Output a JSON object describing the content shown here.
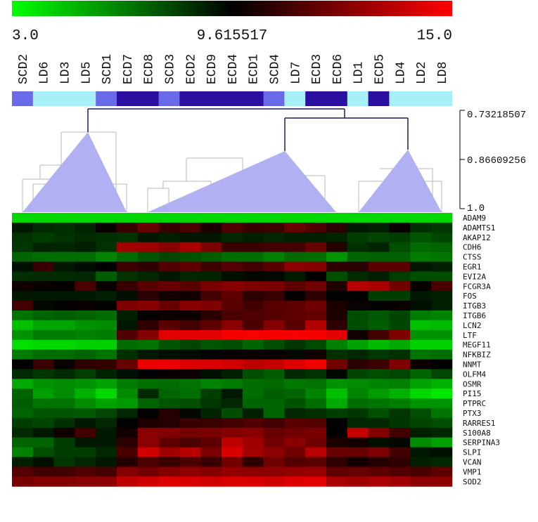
{
  "chart_data": {
    "type": "heatmap",
    "color_scale": {
      "min": 3.0,
      "mid": 9.615517,
      "max": 15.0,
      "min_label": "3.0",
      "mid_label": "9.615517",
      "max_label": "15.0",
      "colors": [
        "#00ff00",
        "#000000",
        "#ff0000"
      ]
    },
    "samples": [
      "SCD2",
      "LD6",
      "LD3",
      "LD5",
      "SCD1",
      "ECD7",
      "ECD8",
      "SCD3",
      "ECD2",
      "ECD9",
      "ECD4",
      "ECD1",
      "SCD4",
      "LD7",
      "ECD3",
      "ECD6",
      "LD1",
      "ECD5",
      "LD4",
      "LD2",
      "LD8"
    ],
    "sample_groups": [
      "SCD",
      "LD",
      "LD",
      "LD",
      "SCD",
      "ECD",
      "ECD",
      "SCD",
      "ECD",
      "ECD",
      "ECD",
      "ECD",
      "SCD",
      "LD",
      "ECD",
      "ECD",
      "LD",
      "ECD",
      "LD",
      "LD",
      "LD"
    ],
    "group_colors": {
      "SCD": "#6a6ae8",
      "LD": "#a8f0f8",
      "ECD": "#2a0fa0"
    },
    "genes": [
      "ADAM9",
      "ADAMTS1",
      "AKAP12",
      "CDH6",
      "CTSS",
      "EGR1",
      "EVI2A",
      "FCGR3A",
      "FOS",
      "ITGB3",
      "ITGB6",
      "LCN2",
      "LTF",
      "MEGF11",
      "NFKBIZ",
      "NNMT",
      "OLFM4",
      "OSMR",
      "PI15",
      "PTPRC",
      "PTX3",
      "RARRES1",
      "S100A8",
      "SERPINA3",
      "SLPI",
      "VCAN",
      "VMP1",
      "SOD2"
    ],
    "values": [
      [
        4.0,
        4.0,
        4.0,
        4.0,
        4.0,
        4.0,
        4.0,
        4.0,
        4.0,
        4.0,
        4.0,
        4.0,
        4.0,
        4.0,
        4.0,
        4.0,
        4.0,
        4.0,
        4.0,
        4.0,
        4.0
      ],
      [
        9.0,
        8.5,
        8.4,
        8.7,
        9.8,
        10.8,
        11.8,
        10.8,
        11.2,
        10.2,
        11.3,
        10.8,
        10.9,
        11.8,
        11.3,
        10.5,
        9.0,
        8.8,
        9.8,
        8.4,
        8.1
      ],
      [
        8.3,
        8.0,
        8.3,
        8.5,
        8.4,
        8.3,
        9.0,
        8.8,
        9.0,
        9.0,
        8.6,
        8.8,
        8.6,
        8.8,
        8.8,
        8.7,
        8.0,
        7.8,
        8.0,
        7.4,
        7.8
      ],
      [
        8.2,
        8.7,
        8.6,
        8.8,
        8.3,
        13.0,
        13.0,
        12.5,
        13.2,
        12.2,
        10.8,
        10.8,
        11.0,
        11.0,
        11.8,
        10.4,
        8.4,
        8.7,
        7.6,
        6.9,
        7.0
      ],
      [
        7.0,
        6.8,
        6.8,
        6.8,
        6.2,
        6.8,
        7.4,
        7.8,
        7.5,
        7.2,
        6.8,
        6.8,
        6.3,
        6.9,
        6.8,
        5.8,
        7.0,
        7.1,
        7.1,
        6.4,
        6.6
      ],
      [
        9.2,
        10.8,
        9.0,
        9.3,
        9.6,
        10.9,
        10.6,
        11.3,
        11.6,
        10.9,
        11.4,
        11.0,
        11.5,
        12.6,
        12.4,
        10.6,
        10.5,
        11.5,
        11.5,
        9.0,
        8.8
      ],
      [
        8.4,
        8.5,
        8.5,
        8.6,
        7.2,
        8.3,
        8.6,
        9.0,
        8.6,
        8.7,
        9.2,
        9.4,
        9.4,
        8.9,
        9.6,
        7.6,
        8.5,
        8.8,
        8.0,
        7.6,
        7.6
      ],
      [
        10.0,
        9.8,
        9.7,
        11.2,
        9.8,
        10.8,
        11.5,
        11.8,
        11.5,
        12.2,
        12.5,
        12.3,
        12.2,
        11.6,
        12.0,
        10.3,
        13.5,
        13.2,
        12.0,
        9.8,
        11.2
      ],
      [
        9.0,
        9.0,
        9.0,
        9.0,
        8.8,
        9.2,
        10.5,
        10.0,
        10.0,
        11.0,
        11.6,
        10.5,
        10.8,
        9.7,
        10.6,
        9.5,
        9.5,
        8.0,
        8.0,
        9.0,
        8.8
      ],
      [
        11.0,
        9.4,
        9.6,
        9.8,
        9.6,
        12.3,
        12.5,
        11.8,
        12.5,
        12.3,
        11.5,
        11.0,
        11.5,
        11.6,
        12.0,
        10.2,
        9.8,
        9.6,
        9.8,
        9.2,
        8.8
      ],
      [
        6.6,
        7.0,
        7.2,
        7.0,
        6.8,
        8.8,
        9.7,
        9.8,
        9.9,
        10.5,
        11.2,
        11.3,
        11.4,
        11.6,
        11.7,
        10.2,
        7.6,
        7.3,
        7.8,
        6.4,
        6.2
      ],
      [
        4.6,
        5.3,
        5.3,
        5.8,
        6.0,
        9.0,
        10.6,
        11.5,
        11.0,
        11.6,
        12.5,
        11.2,
        12.4,
        11.5,
        13.4,
        10.6,
        7.6,
        7.2,
        7.8,
        4.6,
        4.8
      ],
      [
        5.8,
        6.4,
        6.4,
        6.2,
        6.4,
        11.3,
        12.4,
        14.4,
        14.4,
        14.4,
        14.8,
        14.8,
        14.8,
        14.8,
        14.8,
        14.4,
        10.0,
        11.0,
        12.3,
        5.8,
        5.8
      ],
      [
        3.8,
        4.0,
        4.0,
        4.2,
        4.2,
        6.8,
        6.6,
        7.4,
        7.8,
        7.4,
        7.6,
        7.0,
        7.6,
        8.2,
        7.7,
        6.3,
        5.4,
        4.8,
        5.2,
        4.2,
        4.2
      ],
      [
        6.4,
        6.8,
        6.8,
        7.0,
        6.6,
        8.4,
        9.0,
        9.2,
        9.3,
        9.6,
        9.8,
        9.8,
        9.8,
        9.4,
        10.0,
        8.4,
        8.6,
        8.2,
        8.4,
        6.6,
        6.8
      ],
      [
        9.6,
        10.8,
        9.8,
        10.6,
        10.7,
        11.8,
        14.6,
        14.6,
        14.3,
        14.2,
        14.0,
        13.6,
        13.8,
        14.3,
        14.7,
        12.0,
        10.5,
        10.9,
        12.3,
        9.9,
        9.6
      ],
      [
        8.5,
        8.2,
        8.5,
        8.0,
        8.7,
        9.2,
        9.6,
        9.8,
        9.9,
        9.2,
        8.8,
        7.6,
        7.2,
        8.6,
        8.3,
        9.4,
        7.8,
        7.6,
        7.8,
        7.0,
        7.8
      ],
      [
        5.2,
        5.8,
        6.0,
        5.8,
        5.4,
        6.4,
        6.7,
        6.8,
        6.6,
        6.2,
        6.4,
        6.8,
        6.9,
        6.5,
        6.6,
        5.8,
        6.0,
        6.2,
        6.3,
        5.4,
        5.0
      ],
      [
        7.0,
        5.5,
        6.0,
        5.0,
        4.0,
        6.0,
        8.5,
        7.0,
        6.8,
        8.0,
        9.0,
        6.8,
        7.2,
        7.0,
        6.2,
        4.6,
        6.2,
        5.6,
        5.0,
        4.0,
        3.6
      ],
      [
        7.2,
        6.6,
        6.6,
        6.0,
        5.4,
        5.6,
        7.0,
        7.4,
        7.6,
        8.2,
        8.6,
        7.0,
        7.0,
        7.5,
        6.8,
        5.2,
        6.8,
        6.6,
        6.4,
        5.8,
        5.8
      ],
      [
        7.0,
        7.4,
        7.4,
        7.3,
        7.8,
        8.6,
        9.6,
        10.4,
        9.4,
        8.7,
        7.6,
        8.8,
        7.0,
        8.6,
        8.4,
        8.0,
        8.2,
        7.6,
        8.2,
        7.6,
        6.6
      ],
      [
        8.0,
        7.8,
        8.4,
        9.0,
        8.6,
        9.6,
        10.2,
        10.4,
        10.8,
        10.8,
        11.0,
        11.3,
        11.0,
        11.5,
        11.4,
        9.6,
        8.6,
        8.6,
        8.2,
        7.8,
        7.6
      ],
      [
        8.5,
        9.0,
        10.0,
        11.0,
        9.0,
        10.0,
        12.5,
        12.4,
        12.1,
        12.2,
        12.4,
        12.5,
        11.8,
        12.0,
        12.2,
        9.6,
        13.8,
        12.4,
        11.0,
        8.8,
        8.6
      ],
      [
        7.0,
        7.0,
        8.0,
        9.0,
        9.0,
        10.5,
        12.6,
        11.6,
        11.2,
        11.6,
        13.6,
        13.0,
        12.0,
        12.5,
        12.0,
        10.2,
        10.0,
        9.2,
        9.4,
        6.0,
        5.4
      ],
      [
        6.2,
        7.6,
        8.0,
        8.0,
        8.6,
        11.2,
        14.0,
        13.0,
        13.5,
        12.2,
        14.2,
        13.0,
        12.6,
        12.0,
        13.5,
        11.8,
        11.8,
        12.3,
        11.0,
        9.0,
        9.2
      ],
      [
        8.8,
        9.2,
        8.2,
        8.6,
        9.0,
        10.4,
        11.2,
        10.8,
        11.2,
        10.8,
        12.0,
        10.6,
        12.0,
        11.4,
        11.5,
        10.6,
        10.0,
        10.4,
        10.6,
        8.8,
        8.6
      ],
      [
        11.4,
        11.0,
        11.0,
        11.3,
        11.0,
        12.4,
        12.0,
        12.4,
        12.6,
        12.4,
        12.7,
        12.6,
        12.6,
        12.7,
        12.8,
        11.6,
        11.8,
        11.6,
        11.3,
        11.2,
        11.6
      ],
      [
        12.2,
        12.4,
        12.4,
        12.5,
        12.6,
        13.6,
        14.0,
        14.3,
        14.2,
        14.0,
        14.2,
        14.2,
        14.0,
        14.3,
        14.4,
        13.2,
        13.0,
        13.2,
        13.0,
        12.6,
        12.6
      ]
    ],
    "dendrogram": {
      "axis_labels": [
        "0.73218507",
        "0.86609256",
        "1.0"
      ]
    }
  }
}
